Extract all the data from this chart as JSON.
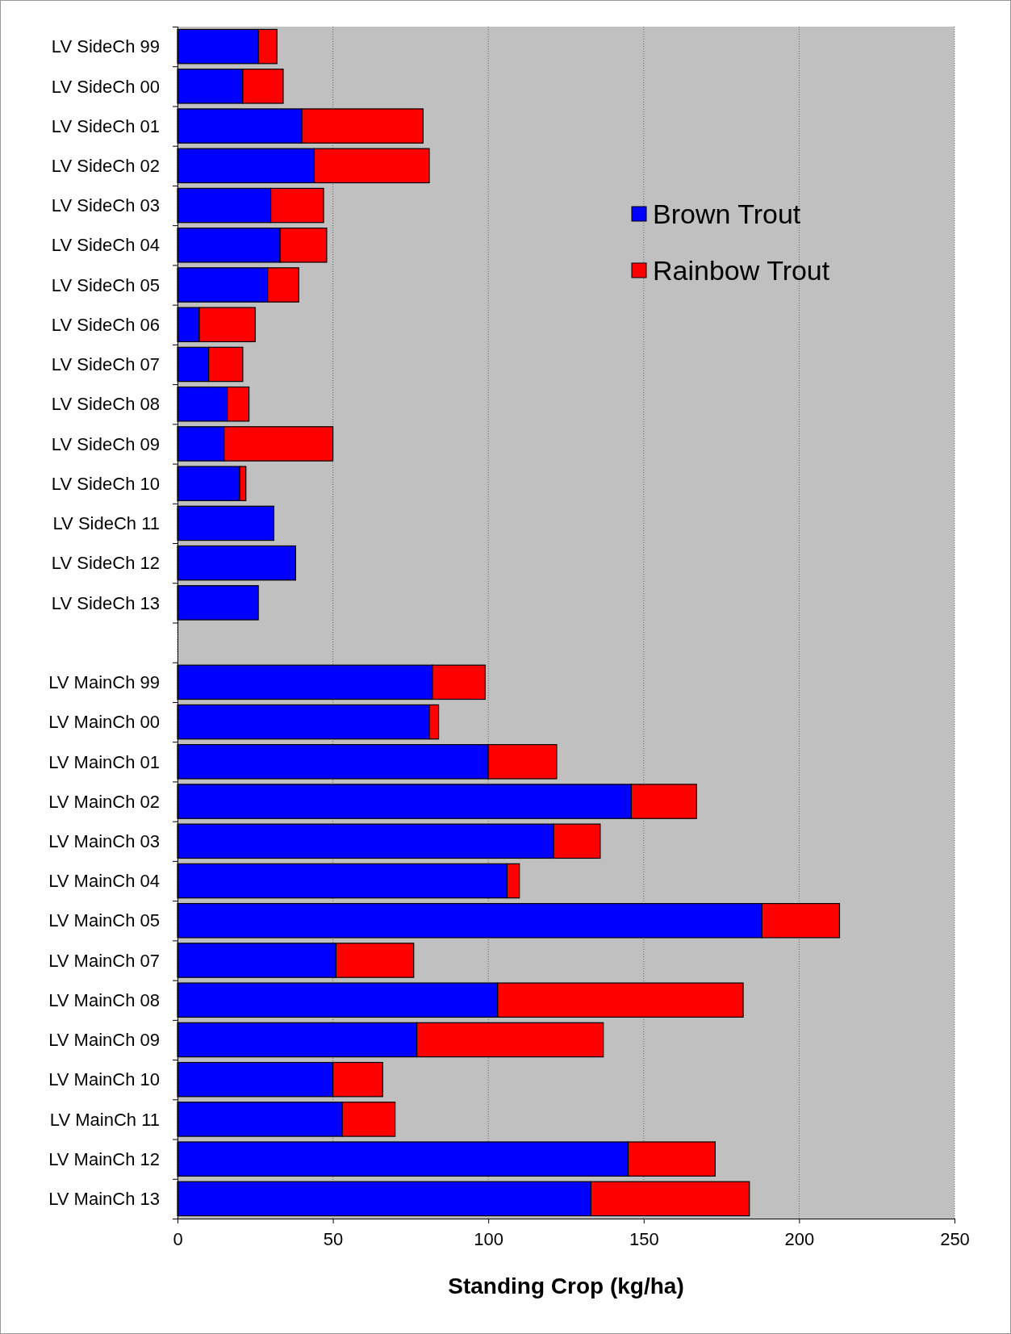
{
  "chart_data": {
    "type": "bar",
    "orientation": "horizontal",
    "stacked": true,
    "xlabel": "Standing Crop (kg/ha)",
    "categories": [
      "LV SideCh 99",
      "LV SideCh 00",
      "LV SideCh 01",
      "LV SideCh 02",
      "LV SideCh 03",
      "LV SideCh 04",
      "LV SideCh 05",
      "LV SideCh 06",
      "LV SideCh 07",
      "LV SideCh 08",
      "LV SideCh 09",
      "LV SideCh 10",
      "LV SideCh 11",
      "LV SideCh 12",
      "LV SideCh 13",
      null,
      "LV MainCh 99",
      "LV MainCh 00",
      "LV MainCh 01",
      "LV MainCh 02",
      "LV MainCh 03",
      "LV MainCh 04",
      "LV MainCh 05",
      "LV MainCh 07",
      "LV MainCh 08",
      "LV MainCh 09",
      "LV MainCh 10",
      "LV MainCh 11",
      "LV MainCh 12",
      "LV MainCh 13"
    ],
    "series": [
      {
        "name": "Brown Trout",
        "color": "#0000ff",
        "values": [
          26,
          21,
          40,
          44,
          30,
          33,
          29,
          7,
          10,
          16,
          15,
          20,
          31,
          38,
          26,
          null,
          82,
          81,
          100,
          146,
          121,
          106,
          188,
          51,
          103,
          77,
          50,
          53,
          145,
          133
        ]
      },
      {
        "name": "Rainbow Trout",
        "color": "#ff0000",
        "values": [
          6,
          13,
          39,
          37,
          17,
          15,
          10,
          18,
          11,
          7,
          35,
          2,
          null,
          null,
          null,
          null,
          17,
          3,
          22,
          21,
          15,
          4,
          25,
          25,
          79,
          60,
          16,
          17,
          28,
          51
        ]
      }
    ],
    "xlim": [
      0,
      250
    ],
    "xticks": [
      0,
      50,
      100,
      150,
      200,
      250
    ],
    "grid": "x",
    "legend": "top right"
  }
}
